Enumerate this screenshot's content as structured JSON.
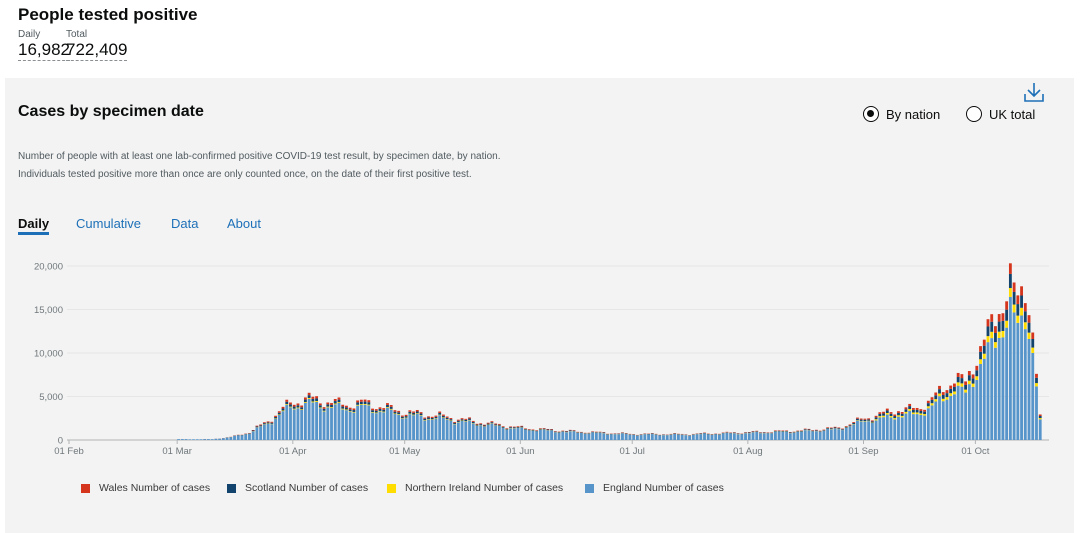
{
  "header": {
    "title": "People tested positive",
    "daily_label": "Daily",
    "daily_value": "16,982",
    "total_label": "Total",
    "total_value": "722,409"
  },
  "card": {
    "title": "Cases by specimen date",
    "radio": [
      {
        "label": "By nation",
        "selected": true
      },
      {
        "label": "UK total",
        "selected": false
      }
    ],
    "description": "Number of people with at least one lab-confirmed positive COVID-19 test result, by specimen date, by nation. Individuals tested positive more than once are only counted once, on the date of their first positive test.",
    "tabs": [
      {
        "label": "Daily",
        "active": true
      },
      {
        "label": "Cumulative",
        "active": false
      },
      {
        "label": "Data",
        "active": false
      },
      {
        "label": "About",
        "active": false
      }
    ],
    "download_icon": "download-icon"
  },
  "chart_data": {
    "type": "bar",
    "stacked": true,
    "x_tick_labels": [
      "01 Feb",
      "01 Mar",
      "01 Apr",
      "01 May",
      "01 Jun",
      "01 Jul",
      "01 Aug",
      "01 Sep",
      "01 Oct"
    ],
    "y_tick_labels": [
      "0",
      "5,000",
      "10,000",
      "15,000",
      "20,000"
    ],
    "ylim": [
      0,
      20000
    ],
    "grid": true,
    "legend_position": "bottom-left",
    "series": [
      {
        "name": "Wales Number of cases",
        "color": "#d4351c"
      },
      {
        "name": "Scotland Number of cases",
        "color": "#12436d"
      },
      {
        "name": "Northern Ireland Number of cases",
        "color": "#ffdd00"
      },
      {
        "name": "England Number of cases",
        "color": "#5694ca"
      }
    ],
    "periods": [
      {
        "start": "2020-02-01",
        "end": "2020-02-29",
        "total": 0
      },
      {
        "start": "2020-03-01",
        "end": "2020-03-10",
        "total": 100
      },
      {
        "start": "2020-03-15",
        "total": 350
      },
      {
        "start": "2020-03-20",
        "total": 900
      },
      {
        "start": "2020-03-25",
        "total": 2200
      },
      {
        "start": "2020-03-31",
        "total": 4300
      },
      {
        "start": "2020-04-05",
        "total": 4800
      },
      {
        "start": "2020-04-10",
        "total": 4400
      },
      {
        "start": "2020-04-15",
        "total": 4100
      },
      {
        "start": "2020-04-20",
        "total": 4300
      },
      {
        "start": "2020-04-25",
        "total": 3800
      },
      {
        "start": "2020-05-01",
        "total": 3200
      },
      {
        "start": "2020-05-10",
        "total": 2800
      },
      {
        "start": "2020-05-20",
        "total": 2100
      },
      {
        "start": "2020-06-01",
        "total": 1400
      },
      {
        "start": "2020-06-15",
        "total": 1000
      },
      {
        "start": "2020-07-01",
        "total": 700
      },
      {
        "start": "2020-07-15",
        "total": 680
      },
      {
        "start": "2020-08-01",
        "total": 900
      },
      {
        "start": "2020-08-15",
        "total": 1100
      },
      {
        "start": "2020-08-25",
        "total": 1400
      },
      {
        "start": "2020-09-01",
        "total": 2500
      },
      {
        "start": "2020-09-10",
        "total": 3500
      },
      {
        "start": "2020-09-15",
        "total": 3600
      },
      {
        "start": "2020-09-20",
        "total": 5000
      },
      {
        "start": "2020-09-25",
        "total": 7200
      },
      {
        "start": "2020-09-28",
        "total": 6500
      },
      {
        "start": "2020-10-01",
        "total": 9800
      },
      {
        "start": "2020-10-05",
        "total": 13000
      },
      {
        "start": "2020-10-08",
        "total": 16500
      },
      {
        "start": "2020-10-10",
        "total": 18000
      },
      {
        "start": "2020-10-12",
        "total": 15500
      },
      {
        "start": "2020-10-14",
        "total": 18800
      },
      {
        "start": "2020-10-16",
        "total": 12500
      },
      {
        "start": "2020-10-18",
        "total": 2500
      }
    ]
  }
}
